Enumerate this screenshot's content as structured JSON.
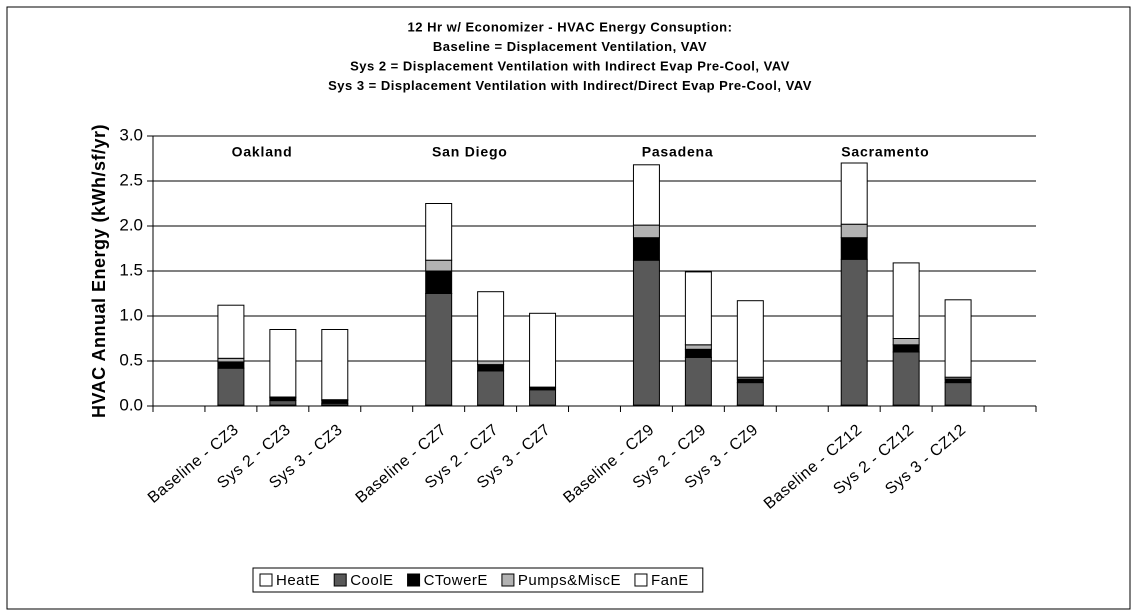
{
  "chart_data": {
    "type": "stacked_bar",
    "title": [
      "12 Hr w/ Economizer - HVAC Energy Consuption:",
      "Baseline = Displacement Ventilation, VAV",
      "Sys 2 = Displacement Ventilation with Indirect Evap Pre-Cool, VAV",
      "Sys 3 = Displacement Ventilation with Indirect/Direct Evap Pre-Cool, VAV"
    ],
    "y_label": "HVAC Annual Energy (kWh/sf/yr)",
    "categories": [
      null,
      "Baseline - CZ3",
      "Sys 2 - CZ3",
      "Sys 3 - CZ3",
      null,
      "Baseline - CZ7",
      "Sys 2 - CZ7",
      "Sys 3 - CZ7",
      null,
      "Baseline - CZ9",
      "Sys 2 - CZ9",
      "Sys 3 - CZ9",
      null,
      "Baseline - CZ12",
      "Sys 2 - CZ12",
      "Sys 3 - CZ12",
      null
    ],
    "groups": [
      "Oakland",
      "San Diego",
      "Pasadena",
      "Sacramento"
    ],
    "series": [
      {
        "name": "HeatE",
        "color": "#ffffff",
        "values": [
          null,
          0.01,
          0.01,
          0.01,
          null,
          0.01,
          0.01,
          0.01,
          null,
          0.01,
          0.01,
          0.01,
          null,
          0.01,
          0.01,
          0.01,
          null
        ]
      },
      {
        "name": "CoolE",
        "color": "#595959",
        "values": [
          null,
          0.41,
          0.05,
          0.02,
          null,
          1.24,
          0.38,
          0.17,
          null,
          1.61,
          0.53,
          0.25,
          null,
          1.62,
          0.59,
          0.25,
          null
        ]
      },
      {
        "name": "CTowerE",
        "color": "#000000",
        "values": [
          null,
          0.07,
          0.03,
          0.03,
          null,
          0.25,
          0.07,
          0.02,
          null,
          0.25,
          0.09,
          0.04,
          null,
          0.24,
          0.08,
          0.04,
          null
        ]
      },
      {
        "name": "Pumps&MiscE",
        "color": "#b2b2b2",
        "values": [
          null,
          0.04,
          0.01,
          0.01,
          null,
          0.12,
          0.04,
          0.01,
          null,
          0.14,
          0.05,
          0.02,
          null,
          0.15,
          0.07,
          0.02,
          null
        ]
      },
      {
        "name": "FanE",
        "color": "#ffffff",
        "values": [
          null,
          0.59,
          0.75,
          0.78,
          null,
          0.63,
          0.77,
          0.82,
          null,
          0.67,
          0.81,
          0.85,
          null,
          0.68,
          0.84,
          0.86,
          null
        ]
      }
    ],
    "ylim": [
      0,
      3
    ],
    "yticks": [
      {
        "value": 0,
        "label": "0.0"
      },
      {
        "value": 0.5,
        "label": "0.5"
      },
      {
        "value": 1,
        "label": "1.0"
      },
      {
        "value": 1.5,
        "label": "1.5"
      },
      {
        "value": 2,
        "label": "2.0"
      },
      {
        "value": 2.5,
        "label": "2.5"
      },
      {
        "value": 3,
        "label": "3.0"
      }
    ],
    "grid": true,
    "legend": "bottom"
  }
}
